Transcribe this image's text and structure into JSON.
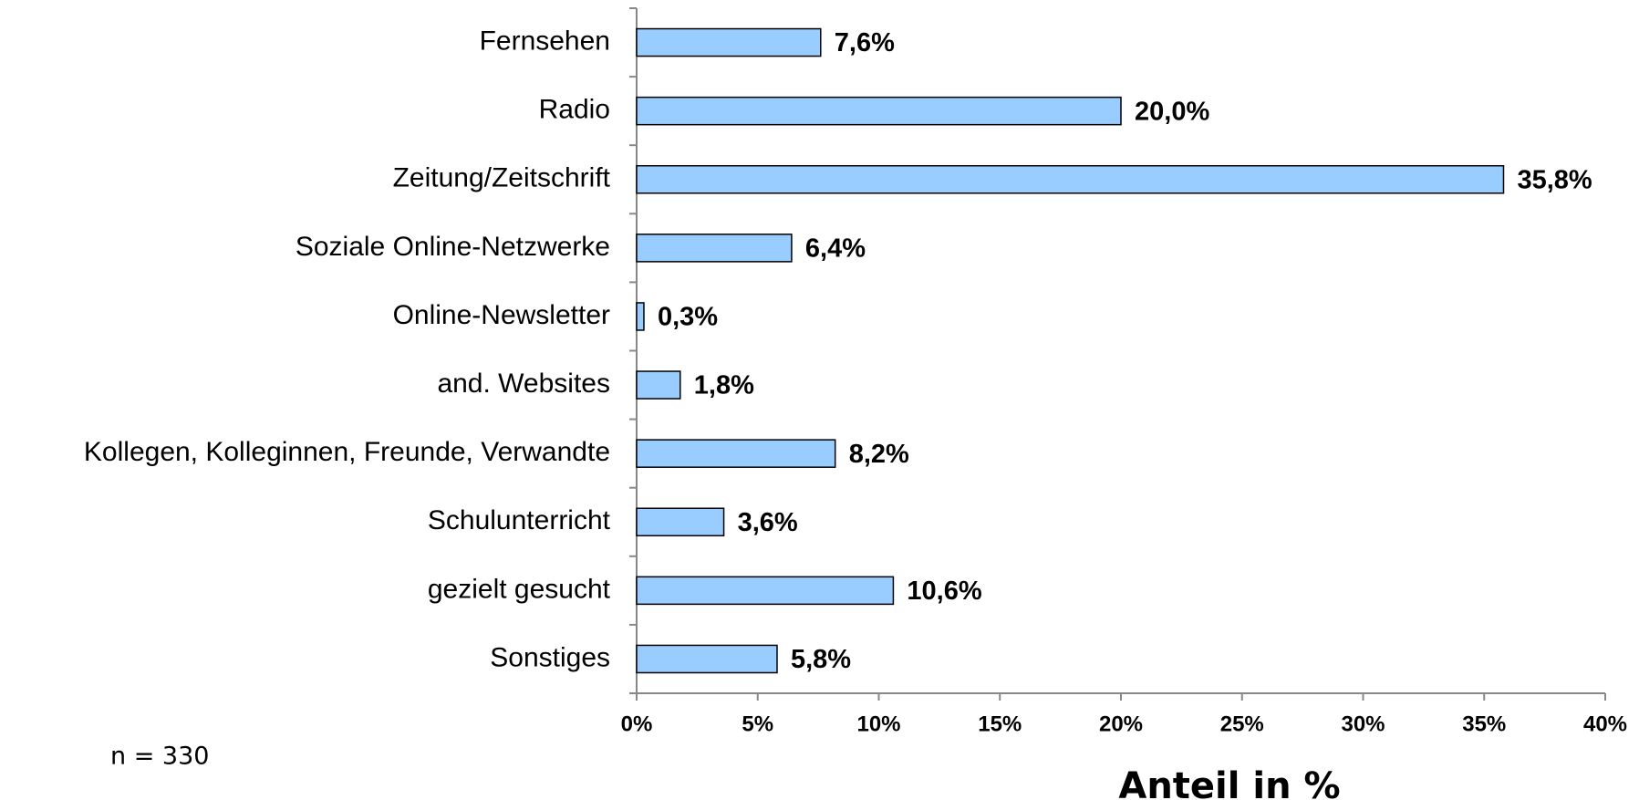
{
  "chart_data": {
    "type": "bar",
    "orientation": "horizontal",
    "categories": [
      "Fernsehen",
      "Radio",
      "Zeitung/Zeitschrift",
      "Soziale Online-Netzwerke",
      "Online-Newsletter",
      "and. Websites",
      "Kollegen, Kolleginnen, Freunde, Verwandte",
      "Schulunterricht",
      "gezielt gesucht",
      "Sonstiges"
    ],
    "values": [
      7.6,
      20.0,
      35.8,
      6.4,
      0.3,
      1.8,
      8.2,
      3.6,
      10.6,
      5.8
    ],
    "value_labels": [
      "7,6%",
      "20,0%",
      "35,8%",
      "6,4%",
      "0,3%",
      "1,8%",
      "8,2%",
      "3,6%",
      "10,6%",
      "5,8%"
    ],
    "color": "#99ccff",
    "xlim": [
      0,
      40
    ],
    "xticks": [
      {
        "value": 0,
        "label": "0%"
      },
      {
        "value": 5,
        "label": "5%"
      },
      {
        "value": 10,
        "label": "10%"
      },
      {
        "value": 15,
        "label": "15%"
      },
      {
        "value": 20,
        "label": "20%"
      },
      {
        "value": 25,
        "label": "25%"
      },
      {
        "value": 30,
        "label": "30%"
      },
      {
        "value": 35,
        "label": "35%"
      },
      {
        "value": 40,
        "label": "40%"
      }
    ],
    "xlabel": "Anteil in %",
    "annotation": "n = 330",
    "grid": false
  }
}
